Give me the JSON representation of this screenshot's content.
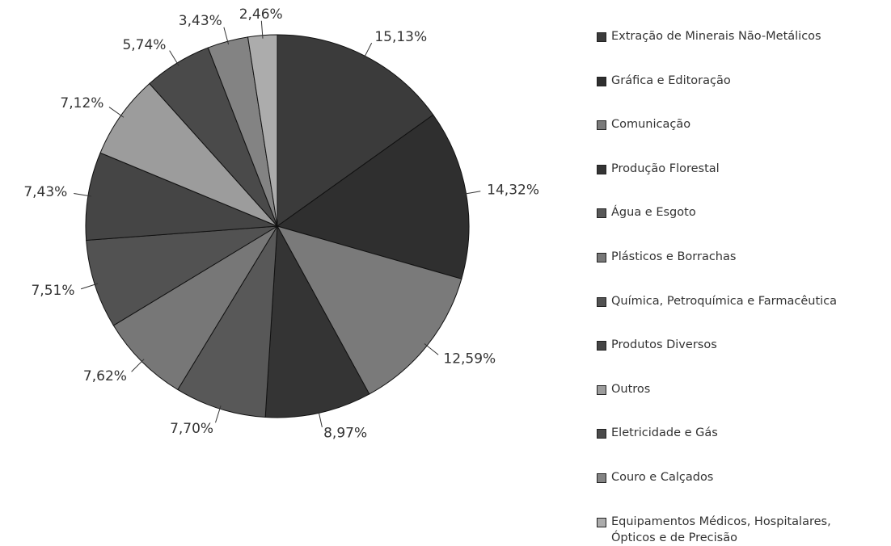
{
  "chart_data": {
    "type": "pie",
    "categories": [
      "Extração de Minerais Não-Metálicos",
      "Gráfica e Editoração",
      "Comunicação",
      "Produção Florestal",
      "Água e Esgoto",
      "Plásticos e Borrachas",
      "Química, Petroquímica e Farmacêutica",
      "Produtos Diversos",
      "Outros",
      "Eletricidade e Gás",
      "Couro e Calçados",
      "Equipamentos Médicos, Hospitalares,\nÓpticos e de Precisão"
    ],
    "values": [
      15.13,
      14.32,
      12.59,
      8.97,
      7.7,
      7.62,
      7.51,
      7.43,
      7.12,
      5.74,
      3.43,
      2.46
    ],
    "value_labels": [
      "15,13%",
      "14,32%",
      "12,59%",
      "8,97%",
      "7,70%",
      "7,62%",
      "7,51%",
      "7,43%",
      "7,12%",
      "5,74%",
      "3,43%",
      "2,46%"
    ],
    "colors": [
      "#3b3b3b",
      "#2f2f2f",
      "#7a7a7a",
      "#343434",
      "#585858",
      "#777777",
      "#525252",
      "#454545",
      "#9c9c9c",
      "#4a4a4a",
      "#838383",
      "#acacac"
    ],
    "legend": "right"
  }
}
